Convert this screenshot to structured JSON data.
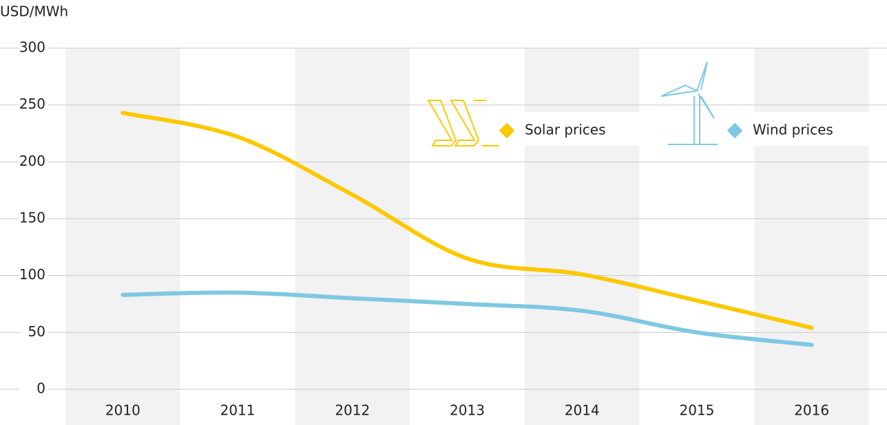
{
  "chart_data": {
    "type": "line",
    "y_label": "USD/MWh",
    "categories": [
      "2010",
      "2011",
      "2012",
      "2013",
      "2014",
      "2015",
      "2016"
    ],
    "series": [
      {
        "name": "Solar prices",
        "color": "#fcc800",
        "values": [
          243,
          222,
          171,
          115,
          101,
          78,
          54
        ]
      },
      {
        "name": "Wind prices",
        "color": "#7ec8e3",
        "values": [
          83,
          85,
          80,
          75,
          69,
          50,
          39
        ]
      }
    ],
    "ylim": [
      0,
      300
    ],
    "yticks": [
      0,
      50,
      100,
      150,
      200,
      250,
      300
    ],
    "grid": true
  }
}
